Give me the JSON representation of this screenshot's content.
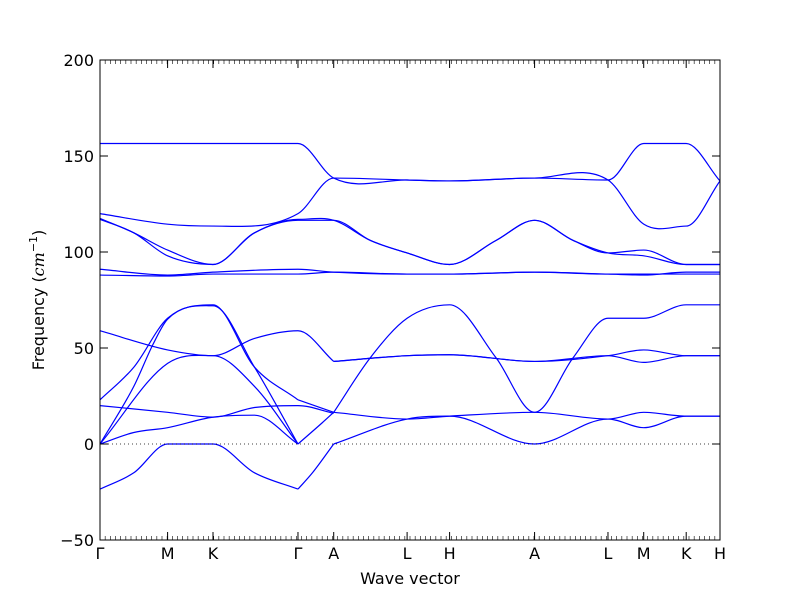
{
  "chart_data": {
    "type": "line",
    "title": "",
    "xlabel": "Wave vector",
    "ylabel": "Frequency (cm⁻¹)",
    "ylabel_parts": {
      "main": "Frequency (",
      "symbol": "cm",
      "exponent": "−1",
      "close": ")"
    },
    "ylim": [
      -50,
      200
    ],
    "yticks": [
      -50,
      0,
      50,
      100,
      150,
      200
    ],
    "xlim": [
      0,
      6.42
    ],
    "grid": false,
    "line_color": "#0000ff",
    "zero_reference": 0,
    "high_symmetry_points": [
      {
        "label": "Γ",
        "x": 0.0
      },
      {
        "label": "M",
        "x": 0.7
      },
      {
        "label": "K",
        "x": 1.17
      },
      {
        "label": "Γ",
        "x": 2.05
      },
      {
        "label": "A",
        "x": 2.42
      },
      {
        "label": "L",
        "x": 3.18
      },
      {
        "label": "H",
        "x": 3.62
      },
      {
        "label": "A",
        "x": 4.5
      },
      {
        "label": "L",
        "x": 5.26
      },
      {
        "label": "M",
        "x": 5.63
      },
      {
        "label": "K",
        "x": 6.07
      },
      {
        "label": "H",
        "x": 6.42
      }
    ],
    "series": [
      {
        "x": [
          0,
          0.35,
          0.7,
          1.17,
          1.6,
          2.05
        ],
        "y": [
          -23.5,
          -15,
          0,
          0,
          -15,
          -23.5
        ]
      },
      {
        "x": [
          2.05,
          2.2,
          2.42
        ],
        "y": [
          -23.5,
          -15,
          0
        ]
      },
      {
        "x": [
          0,
          0.7,
          1.17,
          1.6,
          2.05,
          2.42
        ],
        "y": [
          20,
          16.5,
          14,
          19,
          20,
          16
        ]
      },
      {
        "x": [
          0,
          0.35,
          0.7,
          1.17,
          1.6,
          2.05
        ],
        "y": [
          0,
          6,
          8.5,
          14,
          15,
          0
        ]
      },
      {
        "x": [
          0,
          0.35,
          0.55,
          0.7,
          1.17,
          1.6,
          2.05
        ],
        "y": [
          0,
          30,
          52,
          65,
          72,
          40,
          0
        ]
      },
      {
        "x": [
          0,
          0.7,
          1.17,
          1.6,
          2.05
        ],
        "y": [
          0,
          42,
          46,
          30,
          0
        ]
      },
      {
        "x": [
          0,
          0.35,
          0.7,
          1.17,
          1.6,
          2.05
        ],
        "y": [
          23,
          40,
          65.5,
          72.5,
          40,
          23
        ]
      },
      {
        "x": [
          0,
          0.7,
          1.17,
          1.6,
          2.05,
          2.42
        ],
        "y": [
          59,
          49,
          46,
          55,
          59,
          43
        ]
      },
      {
        "x": [
          2.05,
          2.3,
          2.42
        ],
        "y": [
          0,
          11,
          16.5
        ]
      },
      {
        "x": [
          2.05,
          2.42
        ],
        "y": [
          23,
          16.5
        ]
      },
      {
        "x": [
          2.42,
          3.18,
          3.62,
          4.5,
          5.26,
          5.63,
          6.07,
          6.42
        ],
        "y": [
          0,
          13,
          14.5,
          0,
          13,
          8.5,
          14.5,
          14.5
        ]
      },
      {
        "x": [
          2.42,
          3.18,
          3.62,
          4.5,
          5.26,
          5.63,
          6.07,
          6.42
        ],
        "y": [
          16.5,
          13,
          14.5,
          16.5,
          13,
          16.5,
          14.5,
          14.5
        ]
      },
      {
        "x": [
          2.42,
          3.18,
          3.62,
          4.5,
          5.26,
          5.63,
          6.07,
          6.42
        ],
        "y": [
          43,
          46,
          46.5,
          43,
          46,
          49,
          46,
          46
        ]
      },
      {
        "x": [
          2.42,
          3.18,
          3.62,
          4.5,
          5.26,
          5.63,
          6.07,
          6.42
        ],
        "y": [
          43,
          46,
          46.5,
          43,
          46,
          42.5,
          46,
          46
        ]
      },
      {
        "x": [
          2.42,
          2.8,
          3.18,
          3.62,
          4.1,
          4.5,
          4.9,
          5.26,
          5.63,
          6.07,
          6.42
        ],
        "y": [
          16.5,
          45,
          65.5,
          72.5,
          45,
          16.5,
          45,
          65.5,
          65.5,
          72.5,
          72.5
        ]
      },
      {
        "x": [
          0,
          0.7,
          1.17,
          2.05,
          2.42,
          3.18,
          3.62,
          4.5,
          5.26,
          5.63,
          6.07,
          6.42
        ],
        "y": [
          88,
          87.5,
          88.5,
          88.5,
          89.5,
          88.5,
          88.5,
          89.5,
          88.5,
          88.5,
          88.5,
          88.5
        ]
      },
      {
        "x": [
          0,
          0.7,
          1.17,
          2.05,
          2.42,
          3.18,
          3.62,
          4.5,
          5.26,
          5.63,
          6.07,
          6.42
        ],
        "y": [
          91,
          88,
          89.5,
          91,
          89.5,
          88.5,
          88.5,
          89.5,
          88.5,
          88,
          89.5,
          89.5
        ]
      },
      {
        "x": [
          0,
          0.35,
          0.7,
          1.17,
          1.6,
          2.05,
          2.42,
          2.8,
          3.18,
          3.62,
          4.1,
          4.5,
          4.9,
          5.26,
          5.63,
          6.07,
          6.42
        ],
        "y": [
          117,
          110,
          98,
          93.5,
          110,
          116.5,
          116.5,
          106,
          99.5,
          93.5,
          106,
          116.5,
          106,
          99.5,
          98,
          93.5,
          93.5
        ]
      },
      {
        "x": [
          0,
          0.35,
          0.7,
          1.17,
          1.6,
          2.05,
          2.42,
          2.8,
          3.18,
          3.62,
          4.1,
          4.5,
          4.9,
          5.26,
          5.63,
          6.07,
          6.42
        ],
        "y": [
          117.5,
          110,
          101,
          93.5,
          110,
          117,
          116.5,
          106,
          99.5,
          93.5,
          106,
          116.5,
          106,
          99.5,
          101,
          93.5,
          93.5
        ]
      },
      {
        "x": [
          0,
          0.7,
          1.17,
          2.05,
          2.42,
          3.18,
          3.62,
          4.5,
          5.26,
          5.63,
          6.07,
          6.42
        ],
        "y": [
          120,
          114.5,
          113.5,
          120,
          138.5,
          137.5,
          137,
          138.5,
          137.5,
          114.5,
          113.5,
          137
        ]
      },
      {
        "x": [
          0,
          0.7,
          1.17,
          2.05,
          2.42,
          3.18,
          3.62,
          4.5,
          5.26,
          5.63,
          6.07,
          6.42
        ],
        "y": [
          156.5,
          156.5,
          156.5,
          156.5,
          138.5,
          137.5,
          137,
          138.5,
          137.5,
          156.5,
          156.5,
          137
        ]
      }
    ]
  }
}
